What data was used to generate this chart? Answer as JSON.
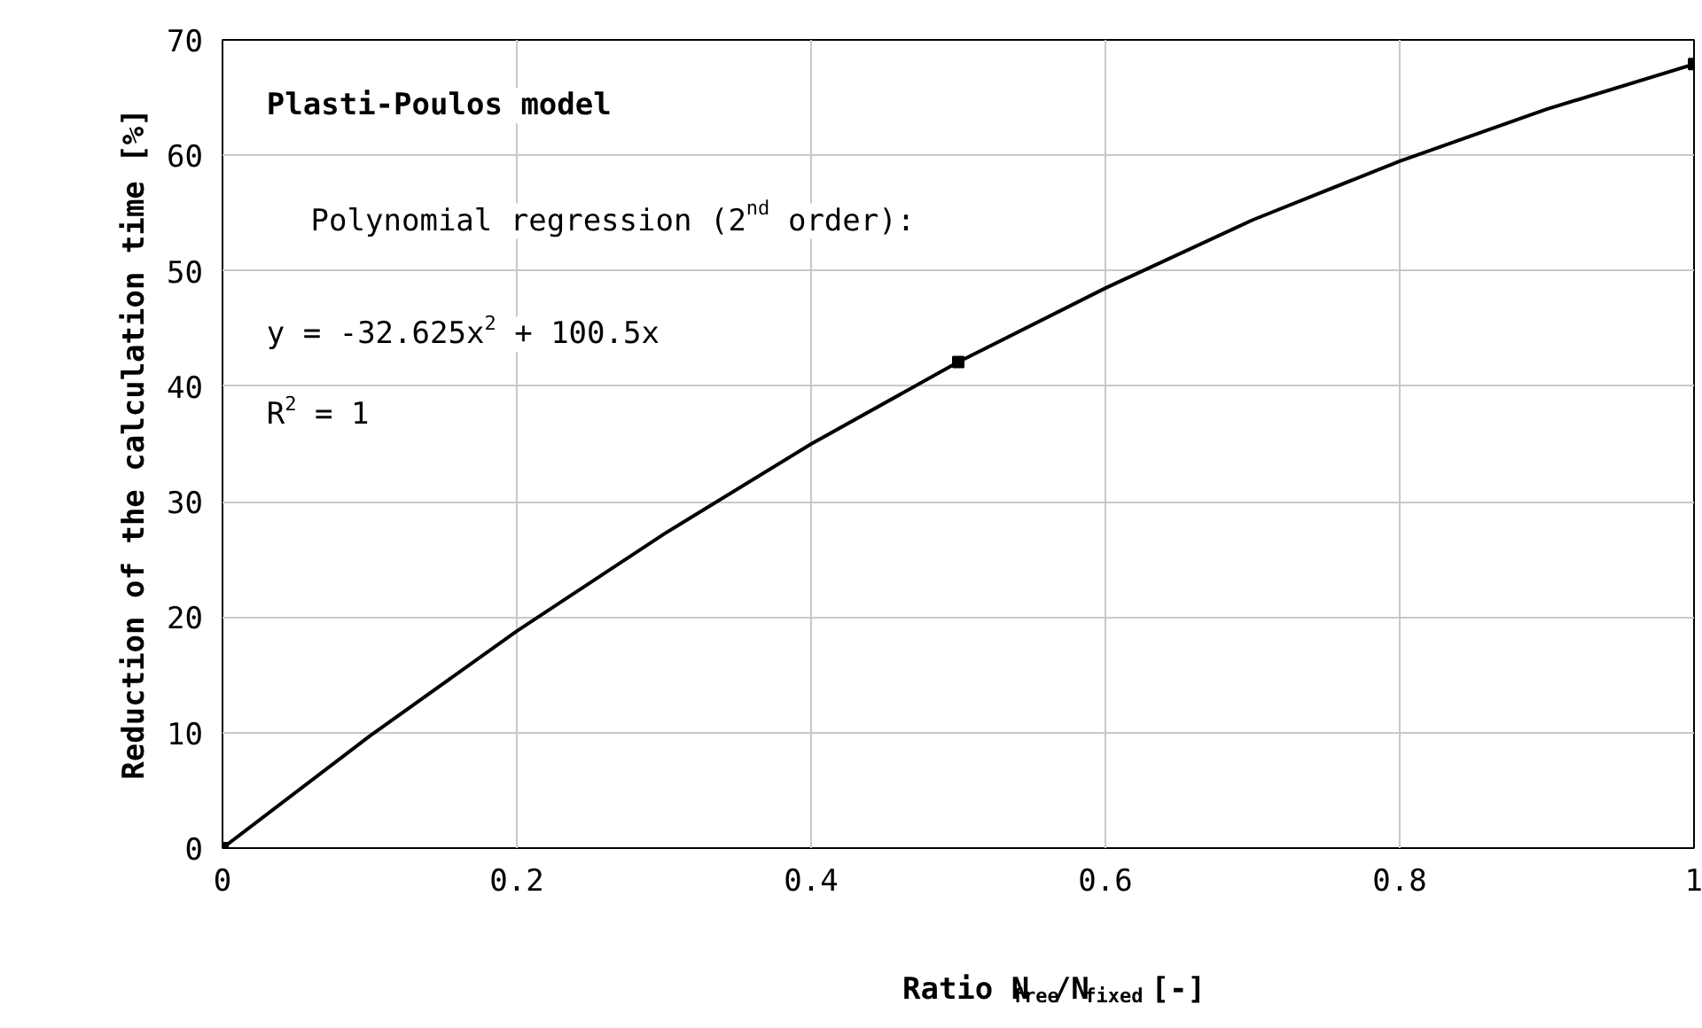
{
  "chart_data": {
    "type": "scatter",
    "xlabel": "Ratio N$_{free}$/N$_{fixed}$ [-]",
    "ylabel": "Reduction of the calculation time [%]",
    "annotations": [
      "Plasti-Poulos model",
      "Polynomial regression (2$^{nd}$ order):",
      "y = -32.625x$^{2}$ + 100.5x",
      "R$^{2}$ = 1"
    ],
    "xlim": [
      0,
      1
    ],
    "ylim": [
      0,
      70
    ],
    "xticks": [
      0,
      0.2,
      0.4,
      0.6,
      0.8,
      1
    ],
    "yticks": [
      0,
      10,
      20,
      30,
      40,
      50,
      60,
      70
    ],
    "grid": true,
    "series": [
      {
        "type": "line",
        "color": "#000000",
        "marker": "none",
        "line_style": "solid",
        "x": [
          0,
          0.1,
          0.2,
          0.3,
          0.4,
          0.5,
          0.6,
          0.7,
          0.8,
          0.9,
          1
        ],
        "values": [
          0,
          9.7,
          18.8,
          27.2,
          35.0,
          42.1,
          48.5,
          54.4,
          59.5,
          64.0,
          67.9
        ]
      },
      {
        "color": "#000000",
        "marker": "square",
        "x": [
          0,
          0.5,
          1
        ],
        "values": [
          0,
          42.1,
          67.9
        ]
      }
    ]
  }
}
